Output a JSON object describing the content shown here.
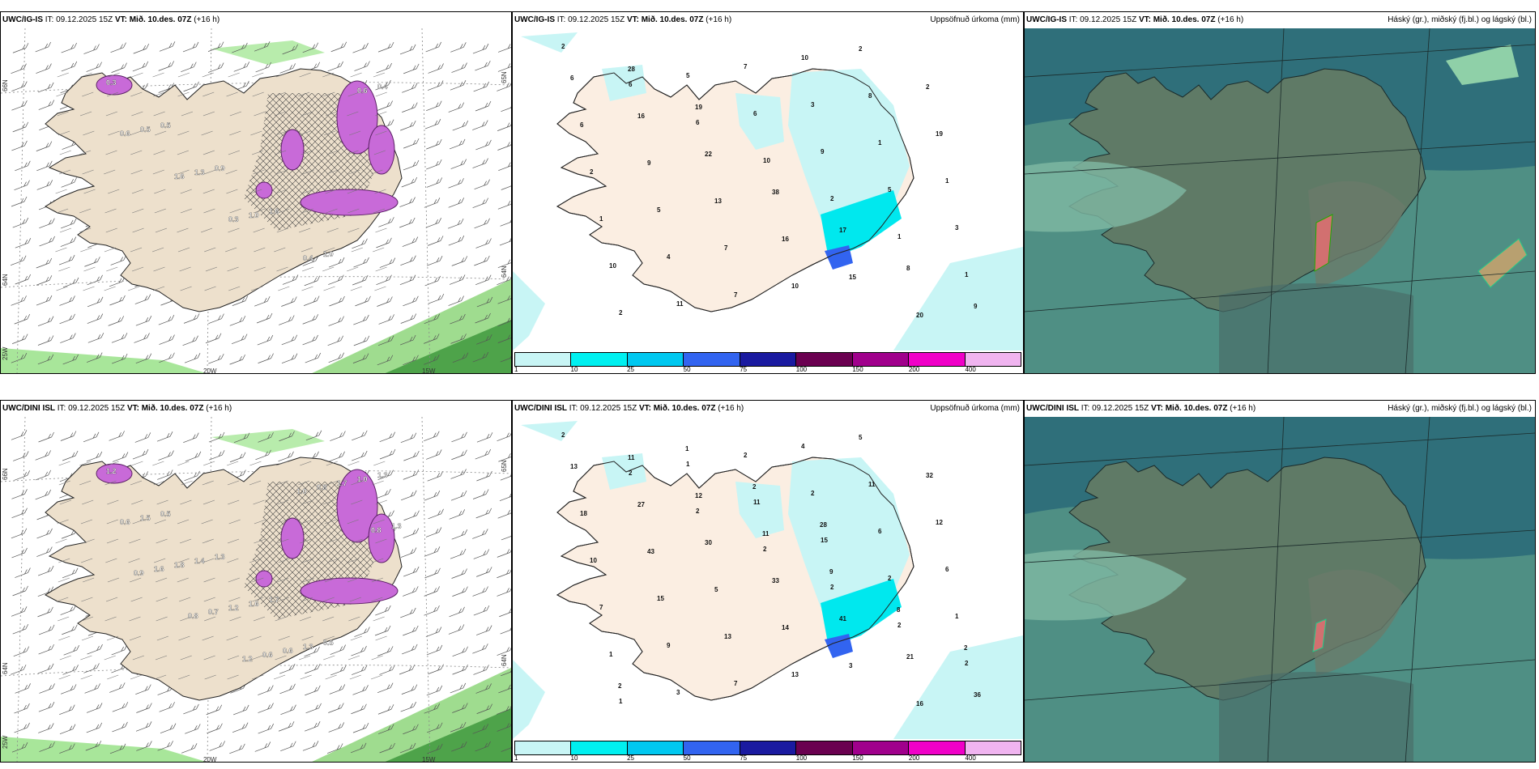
{
  "panels": [
    {
      "model": "UWC/IG-IS",
      "run_info": " IT: 09.12.2025 15Z ",
      "vt_label": "VT: Mið. 10.des. 07Z",
      "lead": " (+16 h)",
      "title_right": "",
      "type": "wind",
      "grid_labels": [
        "66N",
        "64N",
        "25W",
        "20W",
        "15W",
        "65N",
        "64N"
      ],
      "values": [
        "0.3",
        "0.5",
        "0.9",
        "1.6",
        "1.0",
        "0.4",
        "0.5",
        "1.3",
        "1.0",
        "0.4",
        "0.6",
        "0.6",
        "1.6",
        "0.3"
      ]
    },
    {
      "model": "UWC/IG-IS",
      "run_info": " IT: 09.12.2025 15Z ",
      "vt_label": "VT: Mið. 10.des. 07Z",
      "lead": " (+16 h)",
      "title_right": "Uppsöfnuð úrkoma (mm)",
      "type": "precip",
      "values": [
        "2",
        "6",
        "6",
        "10",
        "2",
        "1",
        "1",
        "2",
        "5",
        "6",
        "9",
        "5",
        "3",
        "10",
        "11",
        "7",
        "3",
        "1",
        "1",
        "1",
        "4",
        "7",
        "10",
        "8",
        "19",
        "2",
        "5",
        "7",
        "10",
        "2",
        "2",
        "6",
        "9",
        "13",
        "16",
        "15",
        "20",
        "6",
        "16",
        "22",
        "38",
        "17",
        "8",
        "9",
        "28",
        "19"
      ],
      "colorbar_ticks": [
        "1",
        "10",
        "25",
        "50",
        "75",
        "100",
        "150",
        "200",
        "400"
      ],
      "colorbar_colors": [
        "#c8f5f5",
        "#00f0f0",
        "#00c8f0",
        "#3264f0",
        "#1a1aa0",
        "#6a0050",
        "#a0008c",
        "#f000c8",
        "#f0b4f0"
      ]
    },
    {
      "model": "UWC/IG-IS",
      "run_info": " IT: 09.12.2025 15Z ",
      "vt_label": "VT: Mið. 10.des. 07Z",
      "lead": " (+16 h)",
      "title_right": "Háský (gr.), miðský (fj.bl.) og lágský (bl.)",
      "type": "cloud"
    },
    {
      "model": "UWC/DINI ISL",
      "run_info": " IT: 09.12.2025 15Z ",
      "vt_label": "VT: Mið. 10.des. 07Z",
      "lead": " (+16 h)",
      "title_right": "",
      "type": "wind",
      "grid_labels": [
        "66N",
        "64N",
        "25W",
        "20W",
        "15W",
        "65N",
        "64N"
      ],
      "values": [
        "1.2",
        "0.5",
        "1.3",
        "1.7",
        "0.5",
        "1.3",
        "1.5",
        "1.4",
        "1.6",
        "1.3",
        "1.0",
        "0.6",
        "1.8",
        "1.2",
        "0.6",
        "1.7",
        "1.3",
        "1.6",
        "0.7",
        "0.6",
        "0.8",
        "0.8",
        "0.9",
        "0.8",
        "1.2",
        "1.0"
      ]
    },
    {
      "model": "UWC/DINI ISL",
      "run_info": " IT: 09.12.2025 15Z ",
      "vt_label": "VT: Mið. 10.des. 07Z",
      "lead": " (+16 h)",
      "title_right": "Uppsöfnuð úrkoma (mm)",
      "type": "precip",
      "values": [
        "2",
        "2",
        "2",
        "2",
        "2",
        "2",
        "2",
        "1",
        "1",
        "11",
        "15",
        "2",
        "1",
        "1",
        "3",
        "2",
        "2",
        "6",
        "6",
        "7",
        "9",
        "7",
        "4",
        "11",
        "12",
        "10",
        "15",
        "13",
        "13",
        "5",
        "32",
        "18",
        "43",
        "5",
        "14",
        "3",
        "16",
        "13",
        "27",
        "30",
        "33",
        "41",
        "21",
        "36",
        "11",
        "12",
        "11",
        "9",
        "8",
        "2",
        "2",
        "1",
        "2",
        "28"
      ],
      "colorbar_ticks": [
        "1",
        "10",
        "25",
        "50",
        "75",
        "100",
        "150",
        "200",
        "400"
      ],
      "colorbar_colors": [
        "#c8f5f5",
        "#00f0f0",
        "#00c8f0",
        "#3264f0",
        "#1a1aa0",
        "#6a0050",
        "#a0008c",
        "#f000c8",
        "#f0b4f0"
      ]
    },
    {
      "model": "UWC/DINI ISL",
      "run_info": " IT: 09.12.2025 15Z ",
      "vt_label": "VT: Mið. 10.des. 07Z",
      "lead": " (+16 h)",
      "title_right": "Háský (gr.), miðský (fj.bl.) og lágský (bl.)",
      "type": "cloud"
    }
  ]
}
